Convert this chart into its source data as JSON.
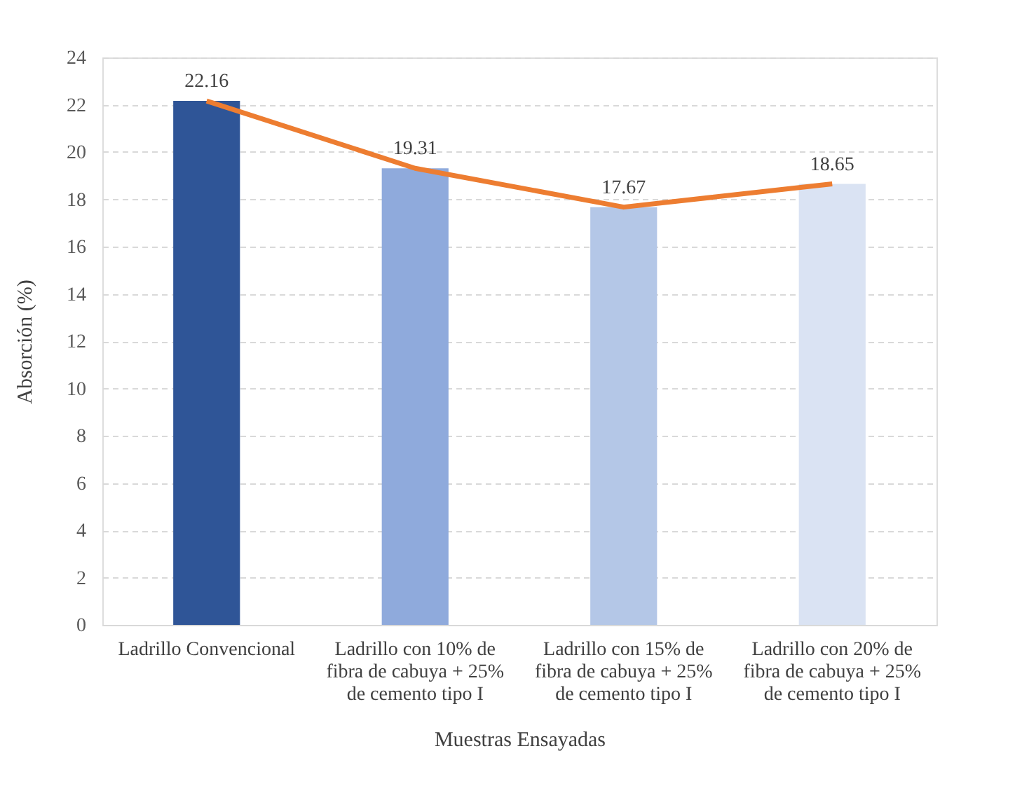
{
  "chart_data": {
    "type": "bar",
    "xlabel": "Muestras Ensayadas",
    "ylabel": "Absorción (%)",
    "categories": [
      "Ladrillo Convencional",
      "Ladrillo con 10% de fibra de cabuya + 25% de cemento tipo I",
      "Ladrillo con 15% de fibra de cabuya + 25% de cemento tipo I",
      "Ladrillo con 20% de fibra de cabuya + 25% de cemento tipo I"
    ],
    "series": [
      {
        "colors": [
          "#2f5597",
          "#8faadc",
          "#b4c7e7",
          "#dae3f3"
        ],
        "values": [
          22.16,
          19.31,
          17.67,
          18.65
        ],
        "value_labels": [
          "22.16",
          "19.31",
          "17.67",
          "18.65"
        ]
      },
      {
        "type": "line",
        "color": "#ed7d31",
        "values": [
          22.16,
          19.31,
          17.67,
          18.65
        ],
        "marker": "none",
        "line_style": "solid"
      }
    ],
    "ylim": [
      0,
      24
    ],
    "yticks": [
      0,
      2,
      4,
      6,
      8,
      10,
      12,
      14,
      16,
      18,
      20,
      22,
      24
    ],
    "grid": "y"
  }
}
